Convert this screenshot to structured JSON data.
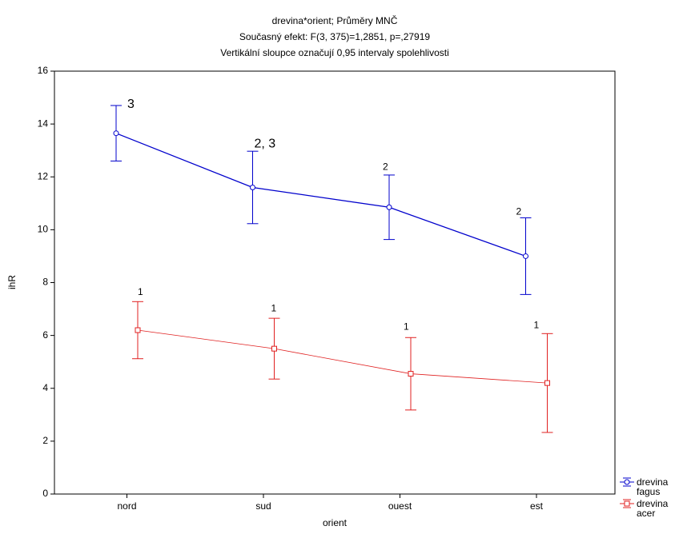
{
  "chart_data": {
    "type": "line",
    "title": "drevina*orient; Průměry MNČ",
    "subtitle": "Současný efekt: F(3, 375)=1,2851, p=,27919",
    "note": "Vertikální sloupce označují 0,95 intervaly spolehlivosti",
    "xlabel": "orient",
    "ylabel": "ihR",
    "categories": [
      "nord",
      "sud",
      "ouest",
      "est"
    ],
    "ylim": [
      0,
      16
    ],
    "yticks": [
      0,
      2,
      4,
      6,
      8,
      10,
      12,
      14,
      16
    ],
    "legend_position": "bottom-right",
    "series": [
      {
        "name": "drevina fagus",
        "color": "#0000cc",
        "marker": "circle",
        "values": [
          13.65,
          11.6,
          10.85,
          9.0
        ],
        "errors": [
          1.05,
          1.37,
          1.22,
          1.45
        ],
        "annotations": [
          "3",
          "2, 3",
          "2",
          "2"
        ]
      },
      {
        "name": "drevina acer",
        "color": "#e02020",
        "marker": "square",
        "values": [
          6.2,
          5.5,
          4.55,
          4.2
        ],
        "errors": [
          1.08,
          1.15,
          1.37,
          1.87
        ],
        "annotations": [
          "1",
          "1",
          "1",
          "1"
        ]
      }
    ]
  }
}
